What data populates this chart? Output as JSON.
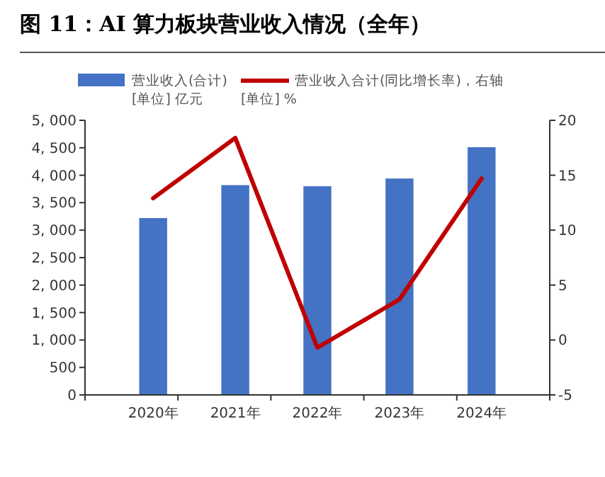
{
  "chart_data": {
    "type": "bar",
    "title": "图 11：AI 算力板块营业收入情况（全年）",
    "categories": [
      "2020年",
      "2021年",
      "2022年",
      "2023年",
      "2024年"
    ],
    "series": [
      {
        "name": "营业收入(合计)\n[单位] 亿元",
        "color": "#4472c4",
        "values": [
          3220,
          3820,
          3800,
          3940,
          4510
        ]
      },
      {
        "name": "营业收入合计(同比增长率)，右轴\n[单位] %",
        "type": "line",
        "axis": "y2",
        "color": "#c00000",
        "values": [
          12.9,
          18.4,
          -0.7,
          3.7,
          14.7
        ]
      }
    ],
    "ylim": [
      0,
      5000
    ],
    "yticks": [
      {
        "value": 0,
        "label": "0"
      },
      {
        "value": 500,
        "label": "500"
      },
      {
        "value": 1000,
        "label": "1, 000"
      },
      {
        "value": 1500,
        "label": "1, 500"
      },
      {
        "value": 2000,
        "label": "2, 000"
      },
      {
        "value": 2500,
        "label": "2, 500"
      },
      {
        "value": 3000,
        "label": "3, 000"
      },
      {
        "value": 3500,
        "label": "3, 500"
      },
      {
        "value": 4000,
        "label": "4, 000"
      },
      {
        "value": 4500,
        "label": "4, 500"
      },
      {
        "value": 5000,
        "label": "5, 000"
      }
    ],
    "y2lim": [
      -5,
      20
    ],
    "y2ticks": [
      -5,
      0,
      5,
      10,
      15,
      20
    ],
    "legend": "top",
    "line_style": "solid"
  }
}
